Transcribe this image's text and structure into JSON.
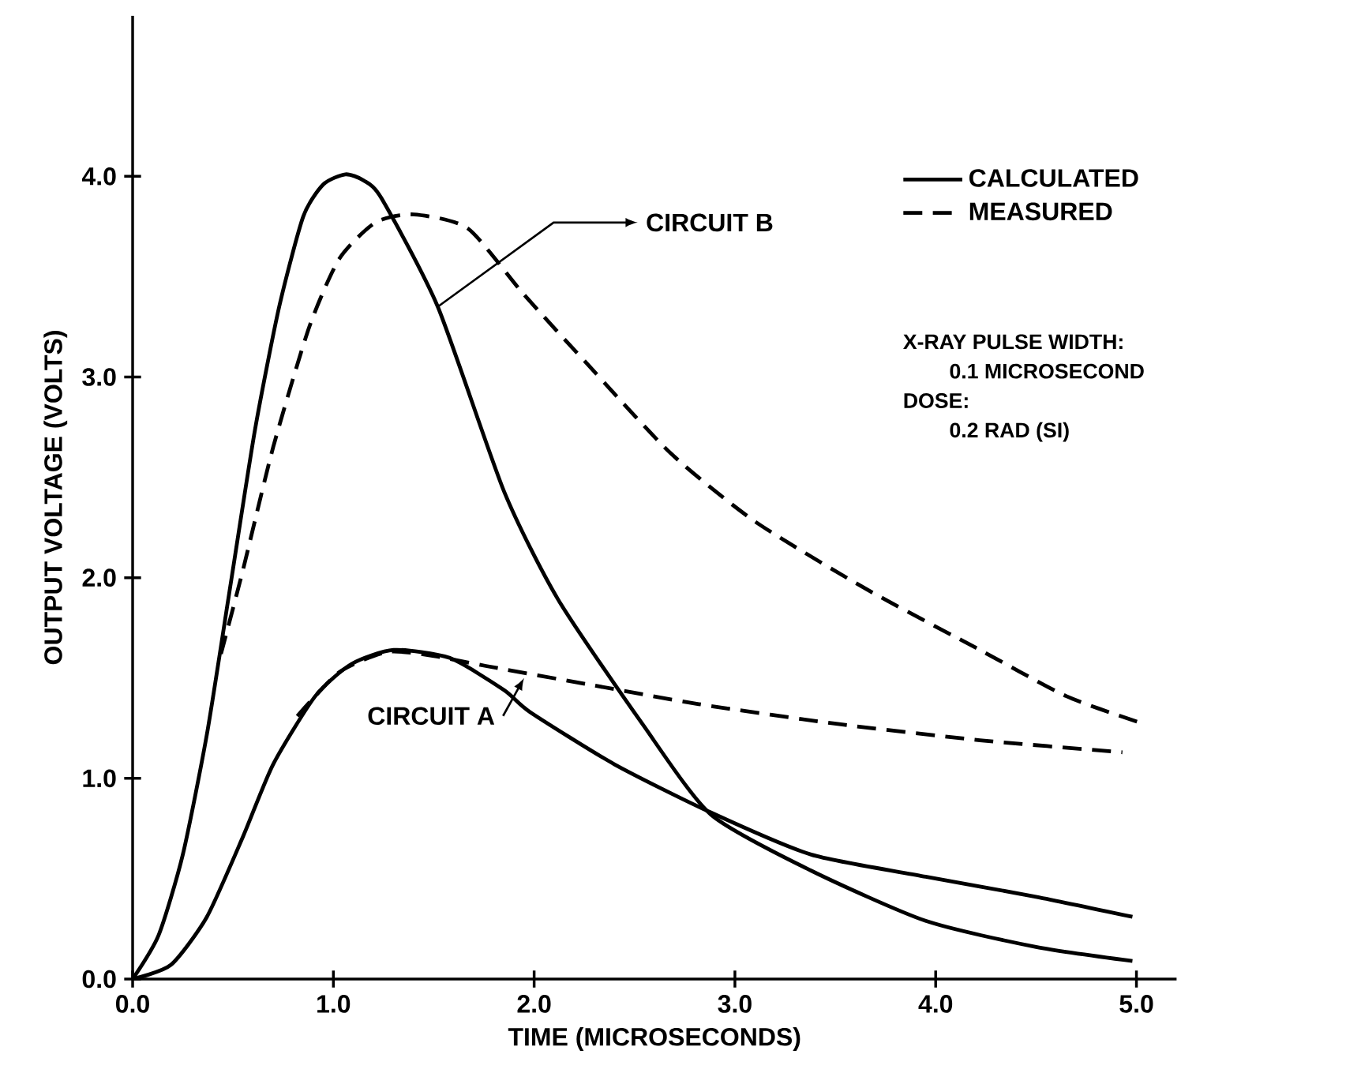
{
  "chart_data": {
    "type": "line",
    "xlabel": "TIME (MICROSECONDS)",
    "ylabel": "OUTPUT VOLTAGE (VOLTS)",
    "xlim": [
      0,
      5.2
    ],
    "ylim": [
      0,
      4.8
    ],
    "xticks": [
      {
        "value": 0,
        "label": "0.0"
      },
      {
        "value": 1,
        "label": "1.0"
      },
      {
        "value": 2,
        "label": "2.0"
      },
      {
        "value": 3,
        "label": "3.0"
      },
      {
        "value": 4,
        "label": "4.0"
      },
      {
        "value": 5,
        "label": "5.0"
      }
    ],
    "yticks": [
      {
        "value": 0,
        "label": "0.0"
      },
      {
        "value": 1,
        "label": "1.0"
      },
      {
        "value": 2,
        "label": "2.0"
      },
      {
        "value": 3,
        "label": "3.0"
      },
      {
        "value": 4,
        "label": "4.0"
      }
    ],
    "grid": false,
    "legend": "top right",
    "marker": "none",
    "series": [
      {
        "name": "CALCULATED",
        "color": "#000000",
        "line_style": "solid",
        "x": [
          0,
          0.13,
          0.25,
          0.37,
          0.49,
          0.61,
          0.73,
          0.85,
          0.95,
          1.06,
          1.15,
          1.24,
          1.52,
          1.85,
          2.12,
          2.54,
          2.88,
          3.38,
          3.95,
          4.5,
          4.98
        ],
        "values": [
          0,
          0.22,
          0.62,
          1.22,
          1.98,
          2.74,
          3.35,
          3.8,
          3.96,
          4.01,
          3.98,
          3.89,
          3.35,
          2.43,
          1.89,
          1.27,
          0.82,
          0.54,
          0.29,
          0.16,
          0.09
        ]
      },
      {
        "name": "MEASURED",
        "color": "#000000",
        "line_style": "dashed",
        "x": [
          0.44,
          0.55,
          0.7,
          0.88,
          1.03,
          1.21,
          1.4,
          1.67,
          1.95,
          2.26,
          2.68,
          3.1,
          3.66,
          4.22,
          4.65,
          5.01
        ],
        "values": [
          1.62,
          2.04,
          2.65,
          3.25,
          3.59,
          3.77,
          3.81,
          3.74,
          3.41,
          3.07,
          2.62,
          2.28,
          1.94,
          1.64,
          1.41,
          1.28
        ]
      },
      {
        "color": "#000000",
        "line_style": "solid",
        "x": [
          0,
          0.19,
          0.37,
          0.55,
          0.7,
          0.91,
          1.09,
          1.3,
          1.58,
          1.85,
          1.98,
          2.4,
          2.88,
          3.38,
          3.95,
          4.5,
          4.98
        ],
        "values": [
          0,
          0.07,
          0.31,
          0.71,
          1.07,
          1.41,
          1.57,
          1.64,
          1.6,
          1.44,
          1.33,
          1.07,
          0.83,
          0.62,
          0.51,
          0.41,
          0.31
        ]
      },
      {
        "color": "#000000",
        "line_style": "dashed",
        "x": [
          0.82,
          1.03,
          1.27,
          1.5,
          1.76,
          2.26,
          2.82,
          3.52,
          4.22,
          4.93
        ],
        "values": [
          1.31,
          1.53,
          1.63,
          1.61,
          1.56,
          1.47,
          1.37,
          1.27,
          1.19,
          1.13
        ]
      }
    ],
    "annotations": [
      {
        "text": "CIRCUIT B",
        "x": 1.52,
        "y": 3.35
      },
      {
        "text": "CIRCUIT A",
        "x": 1.95,
        "y": 1.5
      },
      "X-RAY PULSE WIDTH:",
      "0.1 MICROSECOND",
      "DOSE:",
      "0.2 RAD (SI)"
    ]
  }
}
